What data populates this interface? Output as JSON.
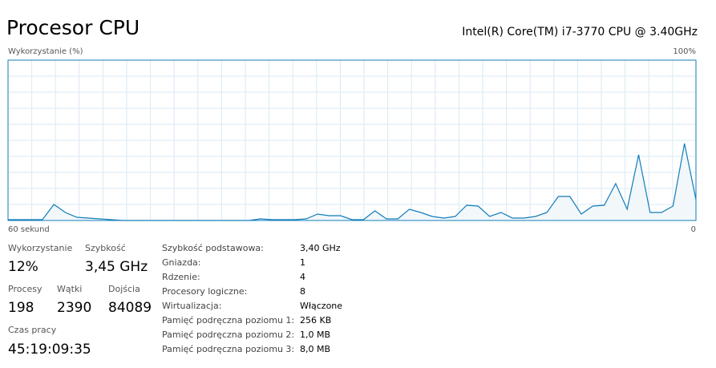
{
  "header": {
    "title": "Procesor CPU",
    "processor": "Intel(R) Core(TM) i7-3770 CPU @ 3.40GHz"
  },
  "chart_data": {
    "type": "area",
    "y_label": "Wykorzystanie (%)",
    "color": "#117dbb",
    "fill": "#f1f6fa",
    "grid_color": "#d9eaf4",
    "xlim": [
      60,
      0
    ],
    "xticks": [
      {
        "value": 60,
        "label": "60 sekund"
      },
      0
    ],
    "ylim": [
      0,
      100
    ],
    "yticks": [
      {
        "value": 100,
        "label": "100%"
      }
    ],
    "x": [
      60,
      59,
      58,
      57,
      56,
      55,
      54,
      53,
      52,
      51,
      50,
      49,
      48,
      47,
      46,
      45,
      44,
      43,
      42,
      41,
      40,
      39,
      38,
      37,
      36,
      35,
      34,
      33,
      32,
      31,
      30,
      29,
      28,
      27,
      26,
      25,
      24,
      23,
      22,
      21,
      20,
      19,
      18,
      17,
      16,
      15,
      14,
      13,
      12,
      11,
      10,
      9,
      8,
      7,
      6,
      5,
      4,
      3,
      2,
      1,
      0
    ],
    "values": [
      0.5,
      0.5,
      0.5,
      0.5,
      10,
      5,
      2,
      1.5,
      1,
      0.5,
      0,
      0,
      0,
      0,
      0,
      0,
      0,
      0,
      0,
      0,
      0,
      0,
      1,
      0.5,
      0.5,
      0.5,
      1,
      4,
      3,
      3,
      0.5,
      0.5,
      6,
      1,
      1,
      7,
      5,
      2.5,
      1.5,
      2.5,
      9.5,
      9,
      2.5,
      5,
      1.5,
      1.5,
      2.5,
      5,
      15,
      15,
      4,
      9,
      9.5,
      23,
      7,
      41,
      5,
      5,
      9,
      48,
      13
    ]
  },
  "stats": {
    "utilization": {
      "label": "Wykorzystanie",
      "value": "12%"
    },
    "speed": {
      "label": "Szybkość",
      "value": "3,45 GHz"
    },
    "processes": {
      "label": "Procesy",
      "value": 198
    },
    "threads": {
      "label": "Wątki",
      "value": 2390
    },
    "handles": {
      "label": "Dojścia",
      "value": 84089
    },
    "uptime": {
      "label": "Czas pracy",
      "value": "45:19:09:35"
    }
  },
  "details": [
    [
      "Szybkość podstawowa:",
      "3,40 GHz"
    ],
    [
      "Gniazda:",
      1
    ],
    [
      "Rdzenie:",
      4
    ],
    [
      "Procesory logiczne:",
      8
    ],
    [
      "Wirtualizacja:",
      "Włączone"
    ],
    [
      "Pamięć podręczna poziomu 1:",
      "256 KB"
    ],
    [
      "Pamięć podręczna poziomu 2:",
      "1,0 MB"
    ],
    [
      "Pamięć podręczna poziomu 3:",
      "8,0 MB"
    ]
  ]
}
